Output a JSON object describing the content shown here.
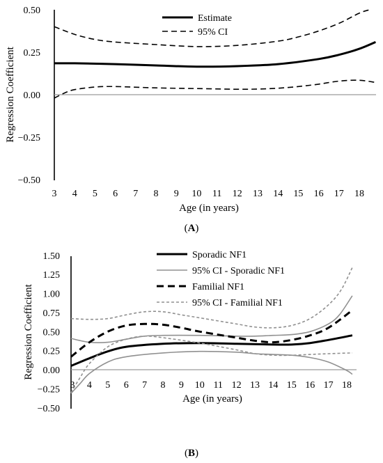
{
  "chart_data": [
    {
      "type": "line",
      "panel_label": "(A)",
      "xlabel": "Age (in years)",
      "ylabel": "Regression Coefficient",
      "xlim": [
        3,
        18.8
      ],
      "ylim": [
        -0.5,
        0.5
      ],
      "x_ticks": [
        "3",
        "4",
        "5",
        "6",
        "7",
        "8",
        "9",
        "10",
        "11",
        "12",
        "13",
        "14",
        "15",
        "16",
        "17",
        "18"
      ],
      "y_ticks": [
        "0.50",
        "0.25",
        "0.00",
        "−0.25",
        "−0.50"
      ],
      "y_tick_values": [
        0.5,
        0.25,
        0,
        -0.25,
        -0.5
      ],
      "legend": [
        "Estimate",
        "95% CI"
      ],
      "series": [
        {
          "name": "Estimate",
          "style": "solid-thick",
          "color": "#000000",
          "x": [
            3,
            4,
            6,
            8,
            10,
            12,
            14,
            16,
            17,
            18,
            18.8
          ],
          "y": [
            0.185,
            0.185,
            0.18,
            0.172,
            0.165,
            0.168,
            0.18,
            0.21,
            0.235,
            0.27,
            0.31
          ]
        },
        {
          "name": "95% CI",
          "style": "dashed",
          "color": "#000000",
          "x": [
            3,
            4,
            5,
            6,
            8,
            10,
            12,
            14,
            15,
            16,
            17,
            18,
            18.5
          ],
          "y": [
            0.4,
            0.355,
            0.325,
            0.31,
            0.295,
            0.283,
            0.29,
            0.315,
            0.34,
            0.375,
            0.42,
            0.48,
            0.5
          ]
        },
        {
          "name": "95% CI lower",
          "style": "dashed",
          "color": "#000000",
          "x": [
            3,
            3.5,
            4,
            5,
            6,
            8,
            10,
            12,
            13,
            14,
            15,
            16,
            17,
            18,
            18.8
          ],
          "y": [
            -0.02,
            0.01,
            0.03,
            0.045,
            0.048,
            0.04,
            0.036,
            0.032,
            0.033,
            0.038,
            0.048,
            0.062,
            0.08,
            0.085,
            0.072
          ]
        }
      ]
    },
    {
      "type": "line",
      "panel_label": "(B)",
      "xlabel": "Age (in years)",
      "ylabel": "Regression Coefficient",
      "xlim": [
        3,
        18.3
      ],
      "ylim": [
        -0.5,
        1.5
      ],
      "x_ticks": [
        "3",
        "4",
        "5",
        "6",
        "7",
        "8",
        "9",
        "10",
        "11",
        "12",
        "13",
        "14",
        "15",
        "16",
        "17",
        "18"
      ],
      "y_ticks": [
        "1.50",
        "1.25",
        "1.00",
        "0.75",
        "0.50",
        "0.25",
        "0.00",
        "−0.25",
        "−0.50"
      ],
      "y_tick_values": [
        1.5,
        1.25,
        1.0,
        0.75,
        0.5,
        0.25,
        0,
        -0.25,
        -0.5
      ],
      "legend": [
        "Sporadic NF1",
        "95% CI - Sporadic NF1",
        "Familial NF1",
        "95% CI - Familial NF1"
      ],
      "series": [
        {
          "name": "Sporadic NF1",
          "style": "solid-thick",
          "color": "#000000",
          "x": [
            3,
            4,
            5,
            6,
            8,
            10,
            12,
            14,
            15,
            16,
            17,
            18.3
          ],
          "y": [
            0.05,
            0.15,
            0.24,
            0.3,
            0.34,
            0.35,
            0.34,
            0.33,
            0.33,
            0.35,
            0.39,
            0.45
          ]
        },
        {
          "name": "95% CI - Sporadic NF1",
          "style": "solid-gray",
          "color": "#909090",
          "x": [
            3,
            4,
            5,
            6,
            7,
            8,
            10,
            12,
            13,
            14,
            15,
            16,
            17,
            17.6,
            18.3
          ],
          "y": [
            0.41,
            0.36,
            0.36,
            0.4,
            0.44,
            0.45,
            0.45,
            0.44,
            0.44,
            0.45,
            0.46,
            0.5,
            0.6,
            0.72,
            0.97
          ]
        },
        {
          "name": "95% CI - Sporadic NF1 lower",
          "style": "solid-gray",
          "color": "#909090",
          "x": [
            3,
            3.5,
            4,
            5,
            6,
            8,
            10,
            12,
            13,
            14,
            15,
            16,
            17,
            18,
            18.3
          ],
          "y": [
            -0.31,
            -0.18,
            -0.05,
            0.1,
            0.17,
            0.22,
            0.24,
            0.23,
            0.21,
            0.2,
            0.19,
            0.16,
            0.1,
            -0.01,
            -0.06
          ]
        },
        {
          "name": "Familial NF1",
          "style": "dashed-thick",
          "color": "#000000",
          "x": [
            3,
            4,
            5,
            6,
            7,
            8,
            9,
            10,
            12,
            13,
            14,
            15,
            16,
            17,
            18.3
          ],
          "y": [
            0.17,
            0.36,
            0.5,
            0.58,
            0.6,
            0.59,
            0.55,
            0.5,
            0.42,
            0.38,
            0.36,
            0.39,
            0.45,
            0.55,
            0.78
          ]
        },
        {
          "name": "95% CI - Familial NF1",
          "style": "dashed-gray",
          "color": "#909090",
          "x": [
            3,
            4,
            5,
            6,
            7,
            8,
            9,
            10,
            12,
            13,
            14,
            15,
            16,
            17,
            17.7,
            18.3
          ],
          "y": [
            0.67,
            0.66,
            0.67,
            0.72,
            0.76,
            0.76,
            0.72,
            0.68,
            0.6,
            0.56,
            0.55,
            0.58,
            0.67,
            0.85,
            1.05,
            1.34
          ]
        },
        {
          "name": "95% CI - Familial NF1 lower",
          "style": "dashed-gray",
          "color": "#909090",
          "x": [
            3,
            3.5,
            4,
            5,
            6,
            7,
            8,
            10,
            12,
            13,
            14,
            15,
            16,
            17,
            18.3
          ],
          "y": [
            -0.3,
            -0.1,
            0.08,
            0.3,
            0.4,
            0.44,
            0.42,
            0.35,
            0.26,
            0.21,
            0.19,
            0.19,
            0.2,
            0.21,
            0.22
          ]
        }
      ]
    }
  ]
}
